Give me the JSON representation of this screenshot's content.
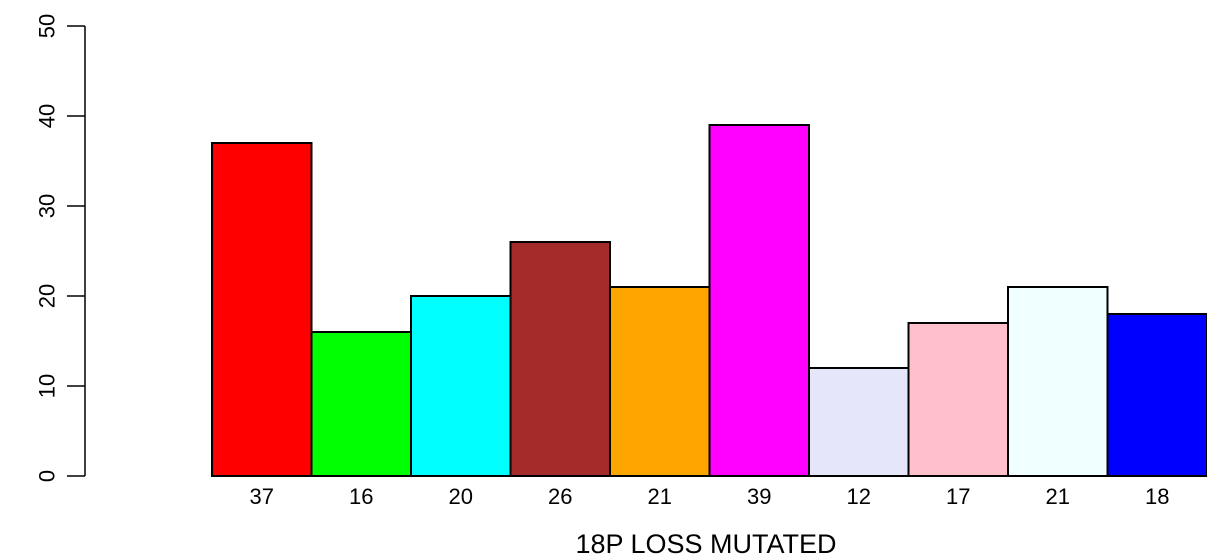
{
  "chart_data": {
    "type": "bar",
    "title": "",
    "xlabel": "18P LOSS MUTATED",
    "ylabel": "",
    "ylim": [
      0,
      50
    ],
    "yticks": [
      0,
      10,
      20,
      30,
      40,
      50
    ],
    "grid": false,
    "legend": "none",
    "categories": [
      "37",
      "16",
      "20",
      "26",
      "21",
      "39",
      "12",
      "17",
      "21",
      "18"
    ],
    "values": [
      37,
      16,
      20,
      26,
      21,
      39,
      12,
      17,
      21,
      18
    ],
    "colors": [
      "#ff0000",
      "#00ff00",
      "#00ffff",
      "#a52a2a",
      "#ffa500",
      "#ff00ff",
      "#e6e6fa",
      "#ffc0cb",
      "#f0ffff",
      "#0000ff"
    ]
  }
}
